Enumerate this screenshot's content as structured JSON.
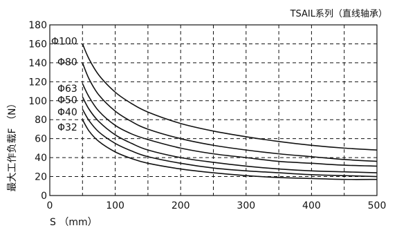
{
  "chart_data": {
    "type": "line",
    "title": "TSAIL系列（直线轴承）",
    "xlabel": "S （mm）",
    "ylabel": "最大工作负载F （N）",
    "xlim": [
      0,
      500
    ],
    "ylim": [
      0,
      180
    ],
    "x_ticks": [
      0,
      100,
      200,
      300,
      400,
      500
    ],
    "y_ticks": [
      0,
      20,
      40,
      60,
      80,
      100,
      120,
      140,
      160,
      180
    ],
    "grid": true,
    "series": [
      {
        "name": "Φ100",
        "label_y": 163,
        "x": [
          50,
          60,
          75,
          100,
          125,
          150,
          200,
          250,
          300,
          350,
          400,
          450,
          500
        ],
        "y": [
          160,
          144,
          127,
          109,
          97,
          88,
          76,
          68,
          62,
          57,
          53,
          50,
          48
        ]
      },
      {
        "name": "Φ80",
        "label_y": 141,
        "x": [
          50,
          60,
          75,
          100,
          125,
          150,
          200,
          250,
          300,
          350,
          400,
          450,
          500
        ],
        "y": [
          140,
          123,
          106,
          89,
          78,
          70,
          60,
          53,
          48,
          44,
          41,
          38,
          36
        ]
      },
      {
        "name": "Φ63",
        "label_y": 113,
        "x": [
          50,
          60,
          75,
          100,
          125,
          150,
          200,
          250,
          300,
          350,
          400,
          450,
          500
        ],
        "y": [
          118,
          104,
          89,
          74,
          65,
          59,
          50,
          44,
          40,
          36,
          34,
          32,
          31
        ]
      },
      {
        "name": "Φ50",
        "label_y": 101,
        "x": [
          50,
          60,
          75,
          100,
          125,
          150,
          200,
          250,
          300,
          350,
          400,
          450,
          500
        ],
        "y": [
          104,
          91,
          78,
          64,
          55,
          48,
          40,
          35,
          31,
          28,
          26,
          25,
          24
        ]
      },
      {
        "name": "Φ40",
        "label_y": 88,
        "x": [
          50,
          60,
          75,
          100,
          125,
          150,
          200,
          250,
          300,
          350,
          400,
          450,
          500
        ],
        "y": [
          91,
          79,
          67,
          55,
          47,
          41,
          34,
          29,
          26,
          24,
          22,
          21,
          20
        ]
      },
      {
        "name": "Φ32",
        "label_y": 72,
        "x": [
          50,
          60,
          75,
          100,
          125,
          150,
          200,
          250,
          300,
          350,
          400,
          450,
          500
        ],
        "y": [
          80,
          68,
          57,
          46,
          39,
          34,
          28,
          24,
          21,
          19,
          18,
          17,
          17
        ]
      }
    ]
  }
}
